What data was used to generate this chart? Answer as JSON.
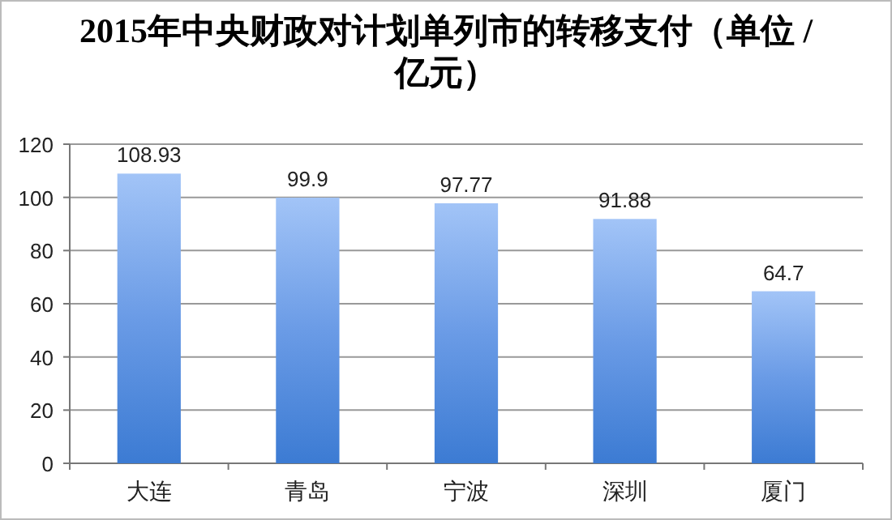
{
  "chart_data": {
    "type": "bar",
    "title": "2015年中央财政对计划单列市的转移支付（单位 / 亿元）",
    "categories": [
      "大连",
      "青岛",
      "宁波",
      "深圳",
      "厦门"
    ],
    "values": [
      108.93,
      99.9,
      97.77,
      91.88,
      64.7
    ],
    "color": "#6a9be6",
    "ylim": [
      0,
      120
    ],
    "yticks": [
      0,
      20,
      40,
      60,
      80,
      100,
      120
    ],
    "grid": "y",
    "data_labels": true
  }
}
